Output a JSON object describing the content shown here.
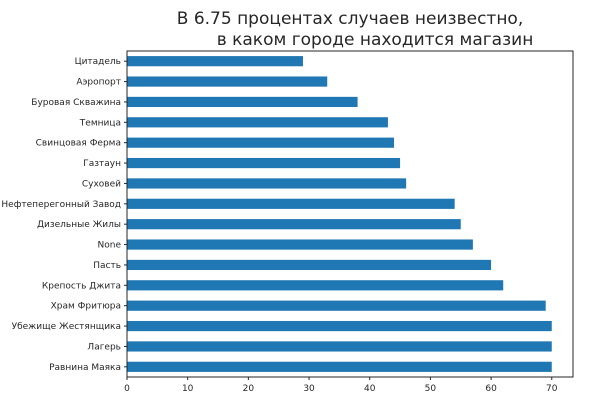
{
  "chart_data": {
    "type": "bar",
    "orientation": "horizontal",
    "title_lines": [
      "В 6.75 процентах случаев неизвестно,",
      "в каком городе находится магазин"
    ],
    "xlabel": "",
    "ylabel": "",
    "categories": [
      "Равнина Маяка",
      "Лагерь",
      "Убежище Жестянщика",
      "Храм Фритюра",
      "Крепость Джита",
      "Пасть",
      "None",
      "Дизельные Жилы",
      "Нефтеперегонный Завод",
      "Суховей",
      "Газтаун",
      "Свинцовая Ферма",
      "Темница",
      "Буровая Скважина",
      "Аэропорт",
      "Цитадель"
    ],
    "values": [
      70,
      70,
      70,
      69,
      62,
      60,
      57,
      55,
      54,
      46,
      45,
      44,
      43,
      38,
      33,
      29
    ],
    "xlim": [
      0,
      73.5
    ],
    "xticks": [
      "0",
      "10",
      "20",
      "30",
      "40",
      "50",
      "60",
      "70"
    ],
    "grid": false,
    "bar_color": "#1f77b4"
  }
}
